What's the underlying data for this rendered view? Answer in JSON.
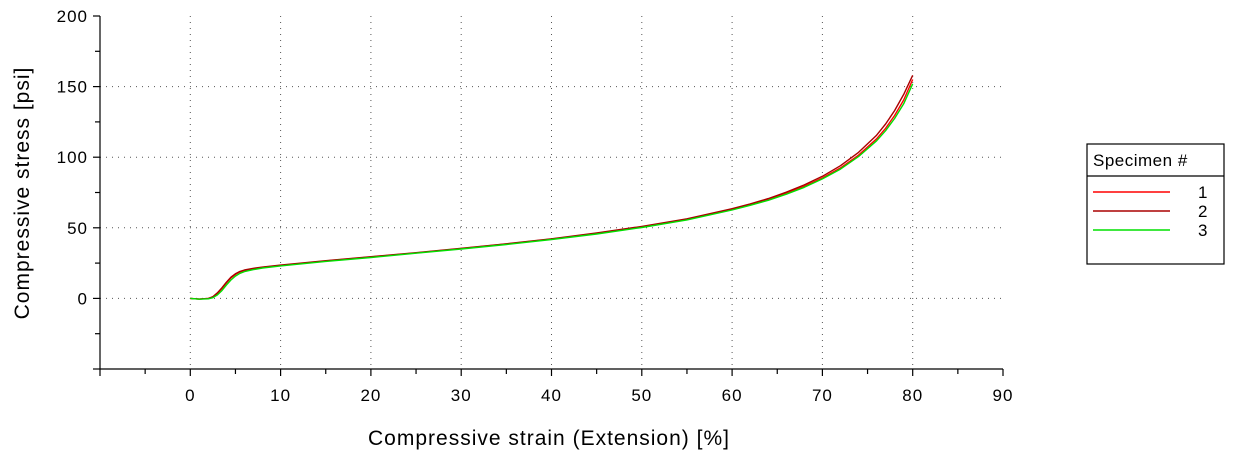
{
  "chart_data": {
    "type": "line",
    "xlabel": "Compressive strain (Extension) [%]",
    "ylabel": "Compressive stress [psi]",
    "xlim": [
      -10,
      90
    ],
    "ylim": [
      -50,
      200
    ],
    "x_ticks": [
      0,
      10,
      20,
      30,
      40,
      50,
      60,
      70,
      80,
      90
    ],
    "y_ticks": [
      0,
      50,
      100,
      150,
      200
    ],
    "grid": true,
    "legend": {
      "title": "Specimen #",
      "placement": "right"
    },
    "series": [
      {
        "name": "1",
        "color": "#ff0000",
        "x": [
          0,
          1,
          2,
          2.5,
          3,
          3.5,
          4,
          4.5,
          5,
          5.5,
          6,
          7,
          8,
          10,
          15,
          20,
          25,
          30,
          35,
          40,
          45,
          50,
          55,
          60,
          62,
          64,
          66,
          68,
          70,
          72,
          74,
          76,
          77,
          78,
          79,
          80
        ],
        "y": [
          0,
          -0.5,
          0,
          1,
          3.5,
          7,
          11,
          14.5,
          17,
          18.8,
          19.8,
          21,
          22,
          23.4,
          26.5,
          29.3,
          32.2,
          35.3,
          38.5,
          42,
          46,
          50.6,
          56,
          63,
          66.3,
          70,
          74.4,
          79.4,
          85.3,
          92.4,
          101.4,
          113,
          120.5,
          129.5,
          140.5,
          155
        ]
      },
      {
        "name": "2",
        "color": "#aa0000",
        "x": [
          0,
          1,
          2,
          2.5,
          3,
          3.5,
          4,
          4.5,
          5,
          5.5,
          6,
          7,
          8,
          10,
          15,
          20,
          25,
          30,
          35,
          40,
          45,
          50,
          55,
          60,
          62,
          64,
          66,
          68,
          70,
          72,
          74,
          76,
          77,
          78,
          79,
          80
        ],
        "y": [
          0,
          -0.5,
          0,
          1.2,
          4,
          7.5,
          11.5,
          15,
          17.4,
          19.1,
          20.1,
          21.3,
          22.2,
          23.6,
          26.7,
          29.5,
          32.4,
          35.5,
          38.7,
          42.2,
          46.3,
          51,
          56.4,
          63.5,
          66.9,
          70.7,
          75.2,
          80.4,
          86.5,
          94,
          103.4,
          115.6,
          123.5,
          133,
          144.5,
          158
        ]
      },
      {
        "name": "3",
        "color": "#00e000",
        "x": [
          0,
          1,
          2,
          2.5,
          3,
          3.5,
          4,
          4.5,
          5,
          5.5,
          6,
          7,
          8,
          10,
          15,
          20,
          25,
          30,
          35,
          40,
          45,
          50,
          55,
          60,
          62,
          64,
          66,
          68,
          70,
          72,
          74,
          76,
          77,
          78,
          79,
          80
        ],
        "y": [
          0,
          -0.6,
          -0.3,
          0.5,
          2.5,
          5.5,
          9.5,
          13,
          15.8,
          17.8,
          19,
          20.4,
          21.5,
          23,
          26.2,
          29,
          32,
          35,
          38.2,
          41.7,
          45.6,
          50.2,
          55.6,
          62.6,
          65.9,
          69.5,
          73.8,
          78.7,
          84.6,
          91.6,
          100.4,
          111.6,
          118.8,
          127.4,
          137.8,
          152
        ]
      }
    ]
  }
}
